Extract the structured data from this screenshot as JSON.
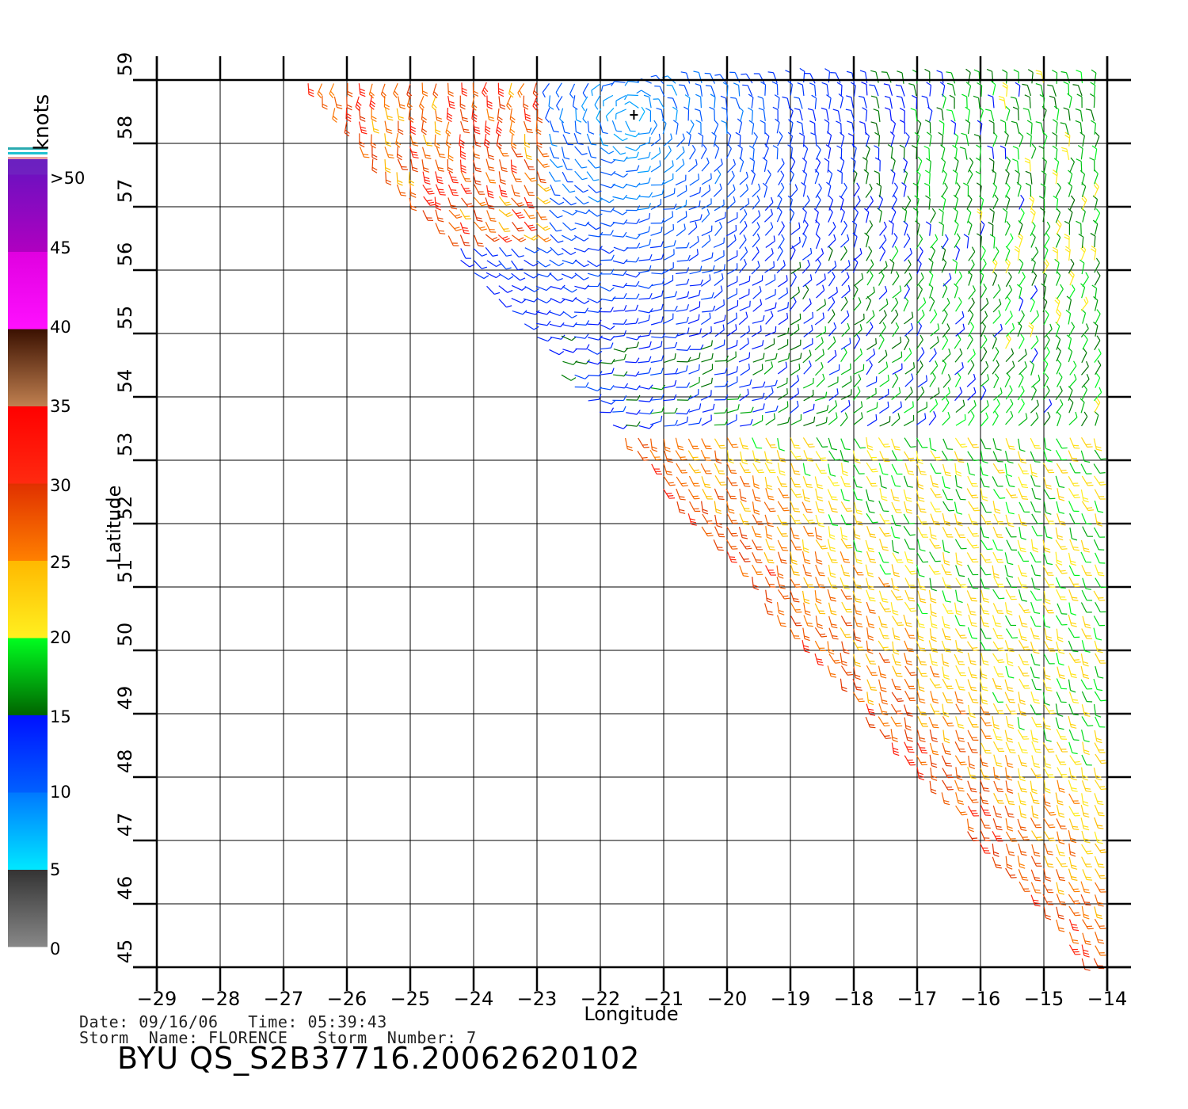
{
  "map": {
    "xaxis": {
      "label": "Longitude",
      "ticks": [
        -29,
        -28,
        -27,
        -26,
        -25,
        -24,
        -23,
        -22,
        -21,
        -20,
        -19,
        -18,
        -17,
        -16,
        -15,
        -14
      ],
      "range": [
        -29,
        -14
      ]
    },
    "yaxis": {
      "label": "Latitude",
      "ticks": [
        45,
        46,
        47,
        48,
        49,
        50,
        51,
        52,
        53,
        54,
        55,
        56,
        57,
        58,
        59
      ],
      "range": [
        45,
        59
      ]
    },
    "grid": true,
    "swath": "diagonal satellite swath from upper-left to lower-right; data only to the right of the swath edge"
  },
  "legend": {
    "units": "knots",
    "labels": [
      ">50",
      "45",
      "40",
      "35",
      "30",
      "25",
      "20",
      "15",
      "10",
      "5",
      "0"
    ],
    "bands": [
      {
        "range": [
          0,
          5
        ],
        "colors": [
          "#888888",
          "#333333"
        ]
      },
      {
        "range": [
          5,
          10
        ],
        "colors": [
          "#00e8ff",
          "#0078ff"
        ]
      },
      {
        "range": [
          10,
          15
        ],
        "colors": [
          "#0060ff",
          "#0010ff"
        ]
      },
      {
        "range": [
          15,
          20
        ],
        "colors": [
          "#006400",
          "#00ff20"
        ]
      },
      {
        "range": [
          20,
          25
        ],
        "colors": [
          "#fff020",
          "#ffb800"
        ]
      },
      {
        "range": [
          25,
          30
        ],
        "colors": [
          "#ff8000",
          "#e03000"
        ]
      },
      {
        "range": [
          30,
          35
        ],
        "colors": [
          "#ff2a10",
          "#ff0000"
        ]
      },
      {
        "range": [
          35,
          40
        ],
        "colors": [
          "#c08050",
          "#3a1000"
        ]
      },
      {
        "range": [
          40,
          45
        ],
        "colors": [
          "#ff10ff",
          "#e000e0"
        ]
      },
      {
        "range": [
          45,
          50
        ],
        "colors": [
          "#b000c0",
          "#7010c0"
        ]
      },
      {
        "range": [
          50,
          60
        ],
        "colors": [
          "#7020c0",
          "#6a20c0"
        ]
      }
    ],
    "top_stripes": [
      "#2aaab0",
      "#ffffff",
      "#20c0d0",
      "#ffffff",
      "#e8a0a0"
    ]
  },
  "storm_center": {
    "lon": -21.47,
    "lat": 58.45
  },
  "footer": {
    "date_line": "Date: 09/16/06   Time: 05:39:43",
    "storm_line": "Storm  Name: FLORENCE   Storm  Number: 7",
    "title": "BYU  QS_S2B37716.20062620102"
  }
}
